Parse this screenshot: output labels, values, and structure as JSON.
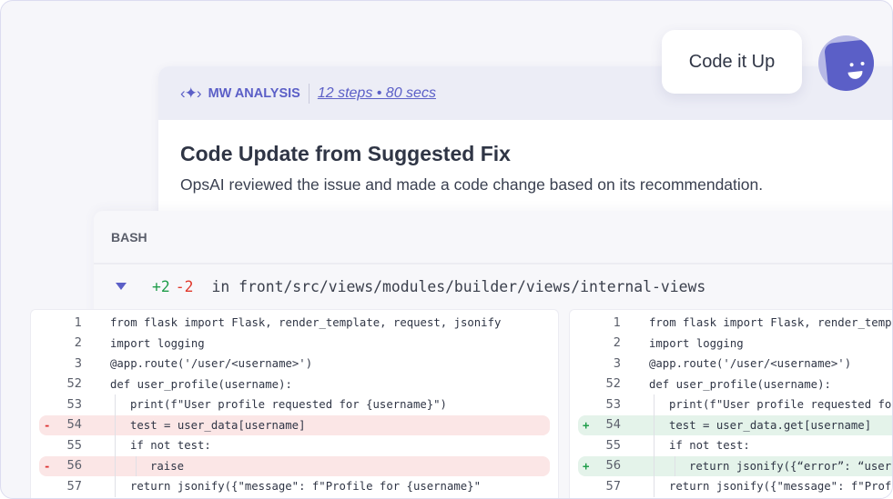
{
  "header": {
    "logo_icon": "sparkle-code-icon",
    "brand": "MW ANALYSIS",
    "steps": "12 steps • 80 secs"
  },
  "card": {
    "title": "Code Update from Suggested Fix",
    "description": "OpsAI reviewed the issue and made a code change based on its recommendation."
  },
  "chat": {
    "button": "Code it Up",
    "avatar_icon": "smiley-bot-icon"
  },
  "bash": {
    "label": "BASH",
    "additions": "+2",
    "deletions": "-2",
    "path": "in front/src/views/modules/builder/views/internal-views"
  },
  "colors": {
    "accent": "#5b5fc7",
    "added": "#1f9d4a",
    "removed": "#e0392c",
    "added_bg": "#e4f3ea",
    "removed_bg": "#fbe6e6"
  },
  "left": [
    {
      "num": "1",
      "code": "from flask import Flask, render_template, request, jsonify",
      "indent": 0,
      "type": ""
    },
    {
      "num": "2",
      "code": "import logging",
      "indent": 0,
      "type": ""
    },
    {
      "num": "3",
      "code": "@app.route('/user/<username>')",
      "indent": 0,
      "type": ""
    },
    {
      "num": "52",
      "code": "def user_profile(username):",
      "indent": 0,
      "type": ""
    },
    {
      "num": "53",
      "code": "print(f\"User profile requested for {username}\")",
      "indent": 1,
      "type": ""
    },
    {
      "num": "54",
      "code": "test = user_data[username]",
      "indent": 1,
      "type": "del",
      "mark": "-"
    },
    {
      "num": "55",
      "code": "if not test:",
      "indent": 1,
      "type": ""
    },
    {
      "num": "56",
      "code": "raise",
      "indent": 2,
      "type": "del",
      "mark": "-"
    },
    {
      "num": "57",
      "code": "return jsonify({\"message\": f\"Profile for {username}\"",
      "indent": 1,
      "type": ""
    }
  ],
  "right": [
    {
      "num": "1",
      "code": "from flask import Flask, render_template, request, jsonify",
      "indent": 0,
      "type": ""
    },
    {
      "num": "2",
      "code": "import logging",
      "indent": 0,
      "type": ""
    },
    {
      "num": "3",
      "code": "@app.route('/user/<username>')",
      "indent": 0,
      "type": ""
    },
    {
      "num": "52",
      "code": "def user_profile(username):",
      "indent": 0,
      "type": ""
    },
    {
      "num": "53",
      "code": "print(f\"User profile requested for {username}\")",
      "indent": 1,
      "type": ""
    },
    {
      "num": "54",
      "code": "test = user_data.get[username]",
      "indent": 1,
      "type": "add",
      "mark": "+"
    },
    {
      "num": "55",
      "code": "if not test:",
      "indent": 1,
      "type": ""
    },
    {
      "num": "56",
      "code": "return jsonify({“error”: “user not found”})",
      "indent": 2,
      "type": "add",
      "mark": "+"
    },
    {
      "num": "57",
      "code": "return jsonify({\"message\": f\"Profile for {username}\"",
      "indent": 1,
      "type": ""
    }
  ]
}
